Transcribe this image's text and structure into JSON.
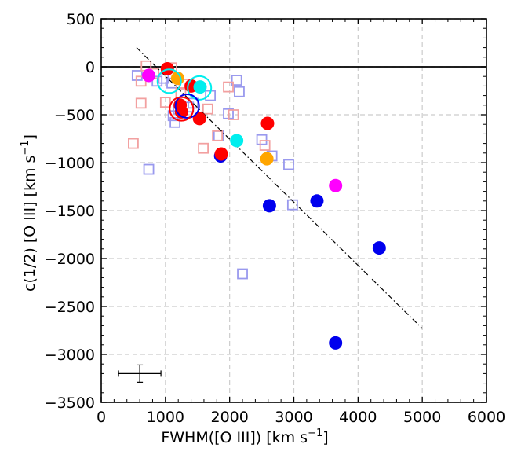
{
  "chart_data": {
    "type": "scatter",
    "title": "",
    "xlabel": "FWHM([O III]) [km s",
    "xlabel_sup": "−1",
    "xlabel_end": "]",
    "ylabel": "c(1/2) [O III] [km s",
    "ylabel_sup": "−1",
    "ylabel_end": "]",
    "xlim": [
      0,
      6000
    ],
    "ylim": [
      -3500,
      500
    ],
    "xticks": [
      0,
      1000,
      2000,
      3000,
      4000,
      5000,
      6000
    ],
    "yticks": [
      -3500,
      -3000,
      -2500,
      -2000,
      -1500,
      -1000,
      -500,
      0,
      500
    ],
    "ytick_labels": [
      "−3500",
      "−3000",
      "−2500",
      "−2000",
      "−1500",
      "−1000",
      "−500",
      "0",
      "500"
    ],
    "grid": true,
    "zero_line": {
      "y": 0,
      "color": "#000000"
    },
    "fit_line": {
      "x": [
        550,
        5000
      ],
      "y": [
        200,
        -2730
      ],
      "color": "#000000",
      "style": "dash-dot"
    },
    "error_bar": {
      "x": 600,
      "y": -3200,
      "xerr": 330,
      "yerr": 90
    },
    "series": [
      {
        "name": "blue-open-squares",
        "marker": "square-open",
        "color": "#9999ee",
        "points": [
          [
            560,
            -90
          ],
          [
            870,
            -150
          ],
          [
            970,
            -120
          ],
          [
            1100,
            -170
          ],
          [
            1150,
            -580
          ],
          [
            1200,
            -440
          ],
          [
            1360,
            -420
          ],
          [
            1430,
            -380
          ],
          [
            1700,
            -300
          ],
          [
            1980,
            -490
          ],
          [
            2110,
            -140
          ],
          [
            2150,
            -260
          ],
          [
            1830,
            -720
          ],
          [
            2500,
            -760
          ],
          [
            2660,
            -930
          ],
          [
            2920,
            -1020
          ],
          [
            2980,
            -1440
          ],
          [
            2200,
            -2160
          ],
          [
            740,
            -1070
          ],
          [
            1120,
            -510
          ]
        ]
      },
      {
        "name": "red-open-squares",
        "marker": "square-open",
        "color": "#f2a0a0",
        "points": [
          [
            620,
            -150
          ],
          [
            700,
            10
          ],
          [
            820,
            -70
          ],
          [
            1000,
            -370
          ],
          [
            1100,
            -10
          ],
          [
            1240,
            -270
          ],
          [
            1290,
            -180
          ],
          [
            1660,
            -440
          ],
          [
            1810,
            -720
          ],
          [
            1980,
            -210
          ],
          [
            2060,
            -500
          ],
          [
            2550,
            -820
          ],
          [
            1590,
            -850
          ],
          [
            500,
            -800
          ],
          [
            620,
            -380
          ]
        ]
      },
      {
        "name": "blue-filled",
        "marker": "circle-filled",
        "color": "#0000ee",
        "points": [
          [
            1860,
            -930
          ],
          [
            2620,
            -1450
          ],
          [
            3360,
            -1400
          ],
          [
            4330,
            -1890
          ],
          [
            3650,
            -2880
          ]
        ]
      },
      {
        "name": "red-filled",
        "marker": "circle-filled",
        "color": "#ff0000",
        "points": [
          [
            1030,
            -20
          ],
          [
            1230,
            -400
          ],
          [
            1250,
            -470
          ],
          [
            1400,
            -200
          ],
          [
            1530,
            -540
          ],
          [
            1870,
            -910
          ],
          [
            2590,
            -590
          ]
        ]
      },
      {
        "name": "orange-filled",
        "marker": "circle-filled",
        "color": "#ffa500",
        "points": [
          [
            1190,
            -120
          ],
          [
            2580,
            -960
          ]
        ]
      },
      {
        "name": "magenta-filled",
        "marker": "circle-filled",
        "color": "#ff00ff",
        "points": [
          [
            740,
            -90
          ],
          [
            3650,
            -1240
          ]
        ]
      },
      {
        "name": "cyan-filled",
        "marker": "circle-filled",
        "color": "#00eeee",
        "points": [
          [
            1540,
            -210
          ],
          [
            2110,
            -770
          ]
        ]
      },
      {
        "name": "large-open-circles",
        "marker": "circle-open-large",
        "color": "multi",
        "points": [
          [
            1060,
            -150,
            "#00eeee"
          ],
          [
            1530,
            -220,
            "#00eeee"
          ],
          [
            1340,
            -410,
            "#0000ee"
          ],
          [
            1250,
            -440,
            "#ff0000"
          ]
        ]
      }
    ]
  }
}
